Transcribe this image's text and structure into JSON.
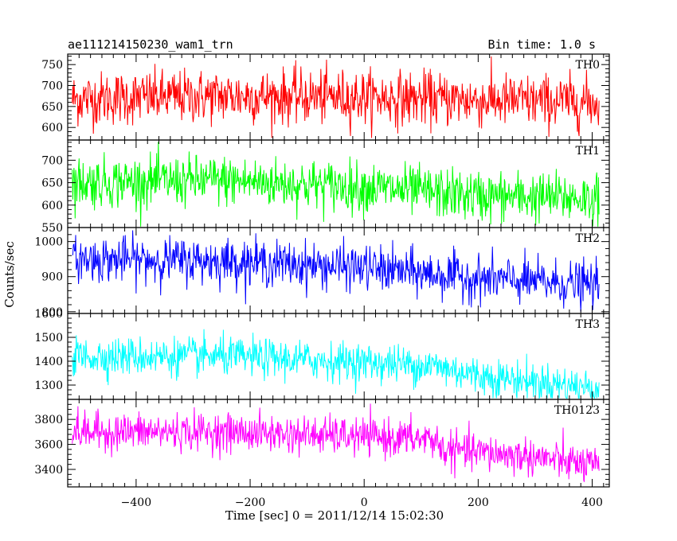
{
  "header": {
    "left_title": "ae111214150230_wam1_trn",
    "right_title": "Bin time: 1.0 s"
  },
  "chart_data": {
    "type": "line",
    "title": "ae111214150230_wam1_trn",
    "subtitle": "Bin time: 1.0 s",
    "xlabel": "Time [sec] 0 = 2011/12/14 15:02:30",
    "ylabel": "Counts/sec",
    "x_range": [
      -512,
      412
    ],
    "xlim": [
      -520,
      430
    ],
    "x_ticks": [
      -400,
      -200,
      0,
      200,
      400
    ],
    "x_tick_labels": [
      "−400",
      "−200",
      "0",
      "200",
      "400"
    ],
    "grid": false,
    "panels": [
      {
        "name": "TH0",
        "color": "#ff0000",
        "ylim": [
          570,
          775
        ],
        "y_ticks": [
          600,
          650,
          700,
          750
        ],
        "trend": [
          [
            -512,
            668
          ],
          [
            -250,
            675
          ],
          [
            0,
            672
          ],
          [
            200,
            665
          ],
          [
            412,
            660
          ]
        ],
        "noise_sd": 32,
        "clip_low": 575,
        "clip_high": 775
      },
      {
        "name": "TH1",
        "color": "#00ff00",
        "ylim": [
          550,
          745
        ],
        "y_ticks": [
          550,
          600,
          650,
          700
        ],
        "trend": [
          [
            -512,
            650
          ],
          [
            -250,
            655
          ],
          [
            0,
            640
          ],
          [
            200,
            620
          ],
          [
            412,
            615
          ]
        ],
        "noise_sd": 28,
        "clip_low": 552,
        "clip_high": 745
      },
      {
        "name": "TH2",
        "color": "#0000ff",
        "ylim": [
          795,
          1040
        ],
        "y_ticks": [
          800,
          900,
          1000
        ],
        "trend": [
          [
            -512,
            950
          ],
          [
            -250,
            945
          ],
          [
            0,
            925
          ],
          [
            200,
            895
          ],
          [
            412,
            875
          ]
        ],
        "noise_sd": 32,
        "clip_low": 797,
        "clip_high": 1040
      },
      {
        "name": "TH3",
        "color": "#00ffff",
        "ylim": [
          1240,
          1600
        ],
        "y_ticks": [
          1300,
          1400,
          1500,
          1600
        ],
        "trend": [
          [
            -512,
            1420
          ],
          [
            -250,
            1420
          ],
          [
            0,
            1395
          ],
          [
            125,
            1380
          ],
          [
            200,
            1340
          ],
          [
            412,
            1285
          ]
        ],
        "noise_sd": 40,
        "clip_low": 1245,
        "clip_high": 1600
      },
      {
        "name": "TH0123",
        "color": "#ff00ff",
        "ylim": [
          3260,
          3960
        ],
        "y_ticks": [
          3400,
          3600,
          3800
        ],
        "trend": [
          [
            -512,
            3700
          ],
          [
            -250,
            3700
          ],
          [
            0,
            3660
          ],
          [
            125,
            3640
          ],
          [
            135,
            3560
          ],
          [
            300,
            3500
          ],
          [
            412,
            3420
          ]
        ],
        "noise_sd": 75,
        "clip_low": 3265,
        "clip_high": 3960
      }
    ]
  }
}
